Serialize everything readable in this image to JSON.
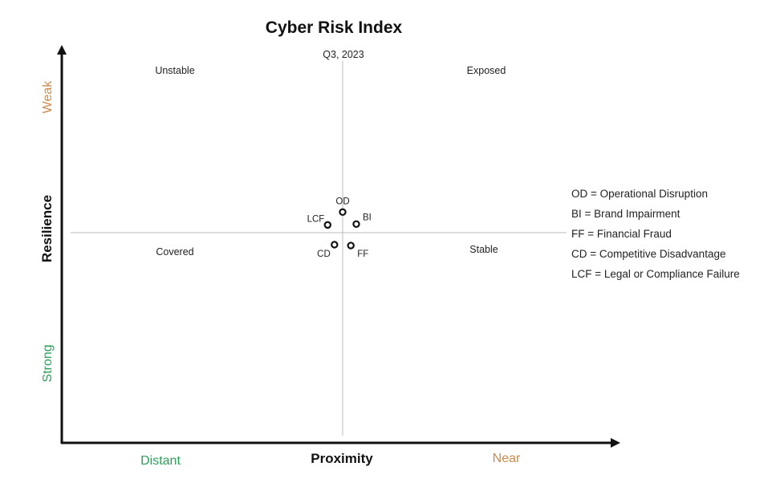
{
  "chart_data": {
    "type": "scatter",
    "title": "Cyber Risk Index",
    "subtitle": "Q3, 2023",
    "xlabel": "Proximity",
    "ylabel": "Resilience",
    "x_low_label": "Distant",
    "x_high_label": "Near",
    "y_low_label": "Strong",
    "y_high_label": "Weak",
    "xlim": [
      -1,
      1
    ],
    "ylim": [
      -1,
      1
    ],
    "grid": false,
    "legend_position": "right",
    "colors": {
      "favorable": "#2e9e5a",
      "unfavorable": "#cf8a4a",
      "axis": "#111111",
      "divider": "#bbbbbb"
    },
    "quadrants": {
      "top_left": "Unstable",
      "top_right": "Exposed",
      "bottom_left": "Covered",
      "bottom_right": "Stable"
    },
    "points": [
      {
        "label": "OD",
        "x": 0.0,
        "y": 0.12
      },
      {
        "label": "BI",
        "x": 0.05,
        "y": 0.05
      },
      {
        "label": "LCF",
        "x": -0.055,
        "y": 0.045
      },
      {
        "label": "CD",
        "x": -0.03,
        "y": -0.07
      },
      {
        "label": "FF",
        "x": 0.03,
        "y": -0.075
      }
    ],
    "legend": [
      "OD = Operational Disruption",
      "BI = Brand Impairment",
      "FF = Financial Fraud",
      "CD = Competitive Disadvantage",
      "LCF = Legal or Compliance Failure"
    ]
  }
}
